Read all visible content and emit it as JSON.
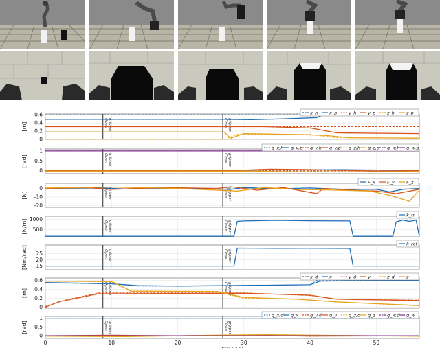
{
  "photos_top": [
    {
      "label": "frame-1"
    },
    {
      "label": "frame-2"
    },
    {
      "label": "frame-3"
    },
    {
      "label": "frame-4"
    },
    {
      "label": "frame-5"
    }
  ],
  "colors": {
    "blue": "#1f6db5",
    "red": "#d9541a",
    "yellow": "#e8a21a",
    "purple": "#7e2f8e",
    "dark": "#222222"
  },
  "events": [
    {
      "t": 8.7,
      "text": "Open gripper"
    },
    {
      "t": 26.8,
      "text": "Close gripper"
    }
  ],
  "xaxis": {
    "ticks": [
      "0",
      "10",
      "20",
      "30",
      "40",
      "50"
    ],
    "label": "time [s]",
    "range": [
      0,
      56.5
    ]
  },
  "panels": [
    {
      "name": "position-desired-panel",
      "ylabel": "[m]",
      "ylim": [
        0,
        0.62
      ],
      "ticks": [
        "0.6",
        "0.4",
        "0.2",
        "0"
      ],
      "tickvals": [
        0.6,
        0.4,
        0.2,
        0
      ],
      "legend": [
        "x_h",
        "x_p",
        "y_h",
        "y_p",
        "z_h",
        "z_p"
      ]
    },
    {
      "name": "orientation-desired-panel",
      "ylabel": "[rad]",
      "ylim": [
        -0.15,
        1.1
      ],
      "ticks": [
        "1",
        "0.5",
        "0"
      ],
      "tickvals": [
        1,
        0.5,
        0
      ],
      "legend": [
        "q_x,h",
        "q_x,p",
        "q_y,h",
        "q_y,p",
        "q_z,h",
        "q_z,p",
        "q_w,h",
        "q_w,p"
      ]
    },
    {
      "name": "force-panel",
      "ylabel": "[N]",
      "ylim": [
        -22,
        6
      ],
      "ticks": [
        "0",
        "-10",
        "-20"
      ],
      "tickvals": [
        0,
        -10,
        -20
      ],
      "legend": [
        "F_x",
        "F_y",
        "F_z"
      ]
    },
    {
      "name": "translational-stiffness-panel",
      "ylabel": "[N/m]",
      "ylim": [
        150,
        1150
      ],
      "ticks": [
        "1000",
        "500"
      ],
      "tickvals": [
        1000,
        500
      ],
      "legend": [
        "k_tr"
      ]
    },
    {
      "name": "rotational-stiffness-panel",
      "ylabel": "[Nm/rad]",
      "ylim": [
        12,
        32
      ],
      "ticks": [
        "25",
        "20",
        "15"
      ],
      "tickvals": [
        25,
        20,
        15
      ],
      "legend": [
        "k_rot"
      ]
    },
    {
      "name": "position-tracking-panel",
      "ylabel": "[m]",
      "ylim": [
        -0.02,
        0.65
      ],
      "ticks": [
        "0.6",
        "0.4",
        "0.2",
        "0"
      ],
      "tickvals": [
        0.6,
        0.4,
        0.2,
        0
      ],
      "legend": [
        "x_d",
        "x",
        "y_d",
        "y",
        "z_d",
        "z"
      ]
    },
    {
      "name": "orientation-tracking-panel",
      "ylabel": "[rad]",
      "ylim": [
        -0.15,
        1.1
      ],
      "ticks": [
        "1",
        "0.5",
        "0"
      ],
      "tickvals": [
        1,
        0.5,
        0
      ],
      "legend": [
        "q_x,d",
        "q_x",
        "q_y,d",
        "q_y",
        "q_z,d",
        "q_z",
        "q_w,d",
        "q_w"
      ]
    }
  ]
}
